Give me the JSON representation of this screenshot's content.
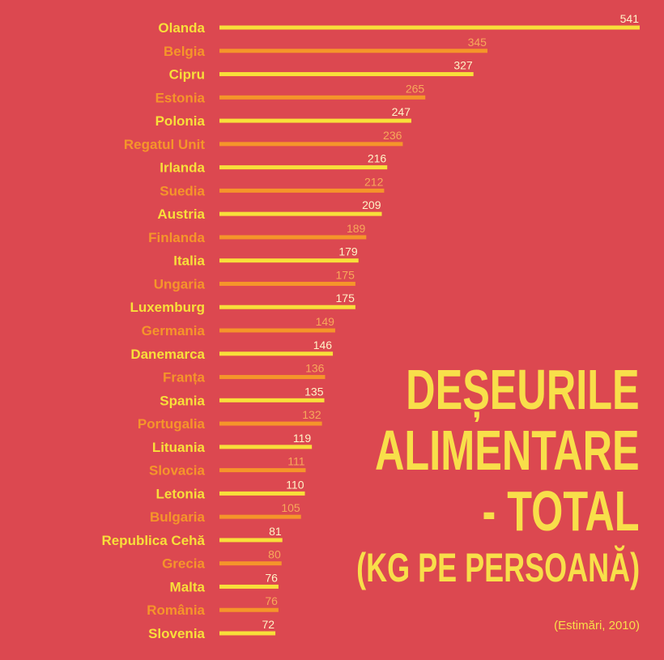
{
  "chart_data": {
    "type": "bar",
    "orientation": "horizontal",
    "title": [
      "DEȘEURILE",
      "ALIMENTARE",
      "- TOTAL"
    ],
    "subtitle": "(KG PE PERSOANĂ)",
    "note": "(Estimări, 2010)",
    "categories": [
      "Olanda",
      "Belgia",
      "Cipru",
      "Estonia",
      "Polonia",
      "Regatul Unit",
      "Irlanda",
      "Suedia",
      "Austria",
      "Finlanda",
      "Italia",
      "Ungaria",
      "Luxemburg",
      "Germania",
      "Danemarca",
      "Franța",
      "Spania",
      "Portugalia",
      "Lituania",
      "Slovacia",
      "Letonia",
      "Bulgaria",
      "Republica Cehă",
      "Grecia",
      "Malta",
      "România",
      "Slovenia"
    ],
    "values": [
      541,
      345,
      327,
      265,
      247,
      236,
      216,
      212,
      209,
      189,
      179,
      175,
      175,
      149,
      146,
      136,
      135,
      132,
      119,
      111,
      110,
      105,
      81,
      80,
      76,
      76,
      72
    ],
    "xlim": [
      0,
      541
    ],
    "grid": false,
    "colors": {
      "background": "#dc4850",
      "bar_primary": "#f8df3a",
      "bar_alternate": "#f5952a",
      "value_primary": "#fff4c8",
      "value_alternate": "#f7a85a"
    }
  }
}
